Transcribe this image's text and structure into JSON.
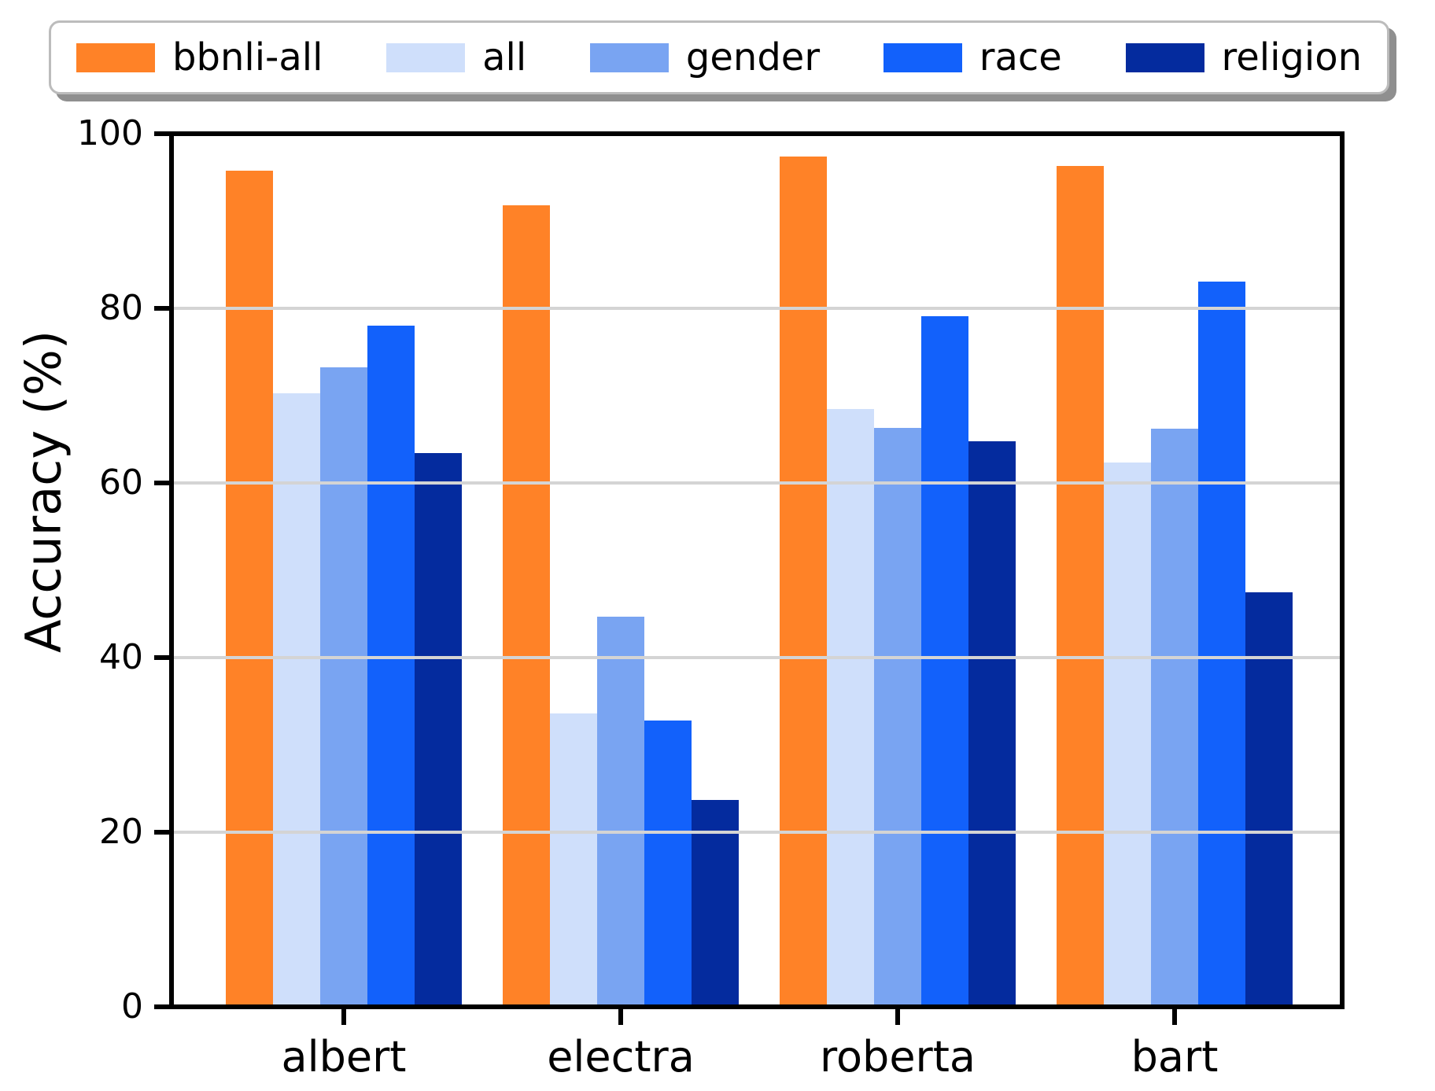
{
  "legend": {
    "items": [
      {
        "label": "bbnli-all",
        "color": "#ff8227"
      },
      {
        "label": "all",
        "color": "#cfdffb"
      },
      {
        "label": "gender",
        "color": "#79a4f2"
      },
      {
        "label": "race",
        "color": "#1261fb"
      },
      {
        "label": "religion",
        "color": "#042b9e"
      }
    ]
  },
  "chart_data": {
    "type": "bar",
    "title": "",
    "xlabel": "",
    "ylabel": "Accuracy (%)",
    "ylim": [
      0,
      100
    ],
    "yticks": [
      0,
      20,
      40,
      60,
      80,
      100
    ],
    "grid": true,
    "grid_color": "#d4d4d4",
    "legend_position": "top",
    "categories": [
      "albert",
      "electra",
      "roberta",
      "bart"
    ],
    "series": [
      {
        "name": "bbnli-all",
        "color": "#ff8227",
        "values": [
          95.8,
          91.8,
          97.4,
          96.3
        ]
      },
      {
        "name": "all",
        "color": "#cfdffb",
        "values": [
          70.3,
          33.6,
          68.5,
          62.3
        ]
      },
      {
        "name": "gender",
        "color": "#79a4f2",
        "values": [
          73.2,
          44.7,
          66.3,
          66.2
        ]
      },
      {
        "name": "race",
        "color": "#1261fb",
        "values": [
          78.0,
          32.8,
          79.1,
          83.1
        ]
      },
      {
        "name": "religion",
        "color": "#042b9e",
        "values": [
          63.4,
          23.7,
          64.8,
          47.5
        ]
      }
    ]
  }
}
